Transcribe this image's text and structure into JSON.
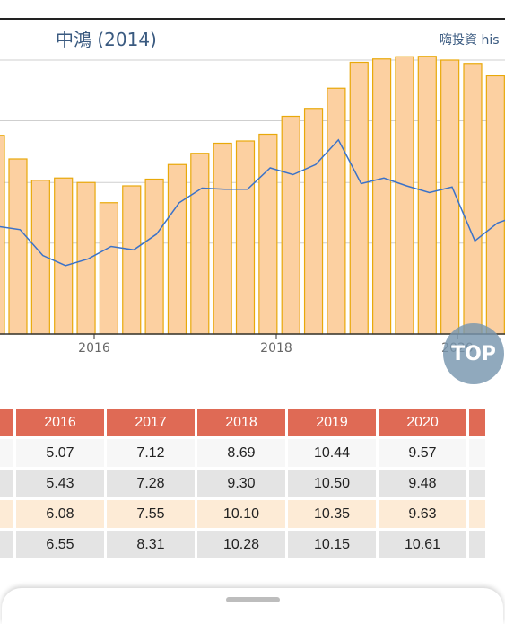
{
  "chart": {
    "title": "中鴻 (2014)",
    "source": "嗨投資 his"
  },
  "top_button": {
    "label": "TOP"
  },
  "chart_data": {
    "type": "bar",
    "x_ticks": [
      "2016",
      "2018",
      "2020"
    ],
    "series": [
      {
        "type": "bar",
        "color": "#fcd0a1",
        "edge_color": "#e8a90a",
        "values": [
          7.8,
          6.85,
          6.95,
          6.75,
          5.85,
          6.6,
          6.9,
          7.55,
          8.05,
          8.5,
          8.6,
          8.9,
          9.7,
          10.05,
          10.95,
          12.1,
          12.25,
          12.35,
          12.37,
          12.2,
          12.05,
          11.5,
          11.4
        ]
      },
      {
        "type": "line",
        "color": "#3a72c9",
        "values": [
          4.8,
          4.65,
          3.5,
          3.05,
          3.35,
          3.9,
          3.75,
          4.45,
          5.85,
          6.5,
          6.45,
          6.45,
          7.4,
          7.1,
          7.55,
          8.65,
          6.7,
          6.95,
          6.6,
          6.3,
          6.55,
          4.15,
          4.95,
          5.3
        ]
      }
    ],
    "ylim": [
      0,
      14
    ],
    "grid": true
  },
  "table": {
    "headers": [
      "2016",
      "2017",
      "2018",
      "2019",
      "2020"
    ],
    "rows": [
      [
        "5.07",
        "7.12",
        "8.69",
        "10.44",
        "9.57"
      ],
      [
        "5.43",
        "7.28",
        "9.30",
        "10.50",
        "9.48"
      ],
      [
        "6.08",
        "7.55",
        "10.10",
        "10.35",
        "9.63"
      ],
      [
        "6.55",
        "8.31",
        "10.28",
        "10.15",
        "10.61"
      ]
    ]
  }
}
